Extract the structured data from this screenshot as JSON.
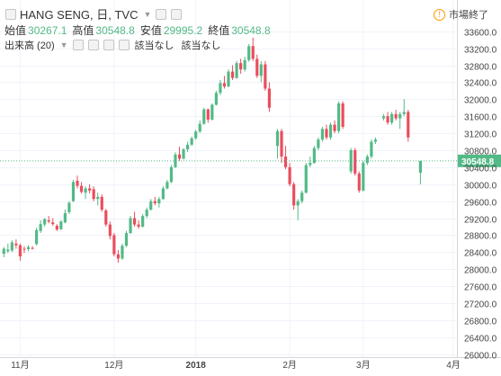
{
  "header": {
    "symbol": "HANG SENG, 日, TVC",
    "market_status": "市場終了",
    "ohlc": [
      {
        "label": "始值",
        "value": "30267.1"
      },
      {
        "label": "高值",
        "value": "30548.8"
      },
      {
        "label": "安值",
        "value": "29995.2"
      },
      {
        "label": "終值",
        "value": "30548.8"
      }
    ],
    "indicator": "出来高 (20)",
    "indicator_values": [
      "該当なし",
      "該当なし"
    ]
  },
  "colors": {
    "up": "#53b987",
    "down": "#eb4d5c",
    "last_price": "#53b987",
    "grid": "#f0f3fa",
    "axis_text": "#444444"
  },
  "chart_data": {
    "type": "candlestick",
    "y_ticks": [
      26000,
      26400,
      26800,
      27200,
      27600,
      28000,
      28400,
      28800,
      29200,
      29600,
      30000,
      30400,
      30800,
      31200,
      31600,
      32000,
      32400,
      32800,
      33200,
      33600
    ],
    "y_tick_labels": [
      "26000.0",
      "26400.0",
      "26800.0",
      "27200.0",
      "27600.0",
      "28000.0",
      "28400.0",
      "28800.0",
      "29200.0",
      "29600.0",
      "30000.0",
      "30400.0",
      "30800.0",
      "31200.0",
      "31600.0",
      "32000.0",
      "32400.0",
      "32800.0",
      "33200.0",
      "33600.0"
    ],
    "ylim": [
      25950,
      33700
    ],
    "x_labels": [
      {
        "index": 4,
        "label": "11月"
      },
      {
        "index": 27,
        "label": "12月"
      },
      {
        "index": 47,
        "label": "2018"
      },
      {
        "index": 70,
        "label": "2月"
      },
      {
        "index": 88,
        "label": "3月"
      },
      {
        "index": 111,
        "label": "4月"
      }
    ],
    "last_price": 30548.8,
    "last_price_label": "30548.8",
    "candles": [
      [
        28360,
        28520,
        28280,
        28480
      ],
      [
        28420,
        28600,
        28380,
        28460
      ],
      [
        28440,
        28680,
        28400,
        28630
      ],
      [
        28600,
        28700,
        28480,
        28560
      ],
      [
        28560,
        28600,
        28200,
        28300
      ],
      [
        28480,
        28540,
        28380,
        28470
      ],
      [
        28470,
        28560,
        28420,
        28520
      ],
      [
        28500,
        28540,
        28460,
        28490
      ],
      [
        28590,
        28970,
        28560,
        28920
      ],
      [
        28900,
        29150,
        28850,
        29060
      ],
      [
        29050,
        29200,
        29000,
        29180
      ],
      [
        29150,
        29250,
        29080,
        29120
      ],
      [
        29100,
        29200,
        29020,
        29060
      ],
      [
        29020,
        29060,
        28900,
        28930
      ],
      [
        28940,
        29150,
        28920,
        29120
      ],
      [
        29100,
        29400,
        29080,
        29320
      ],
      [
        29340,
        29600,
        29300,
        29560
      ],
      [
        29600,
        30100,
        29580,
        30050
      ],
      [
        30080,
        30200,
        29900,
        29960
      ],
      [
        29960,
        30050,
        29780,
        29820
      ],
      [
        29800,
        29950,
        29650,
        29900
      ],
      [
        29900,
        30000,
        29780,
        29850
      ],
      [
        29880,
        29950,
        29600,
        29650
      ],
      [
        29650,
        29800,
        29500,
        29700
      ],
      [
        29700,
        29760,
        29350,
        29400
      ],
      [
        29380,
        29420,
        29000,
        29050
      ],
      [
        29050,
        29120,
        28700,
        28780
      ],
      [
        28800,
        28850,
        28300,
        28350
      ],
      [
        28350,
        28450,
        28150,
        28250
      ],
      [
        28250,
        28600,
        28220,
        28550
      ],
      [
        28550,
        28900,
        28520,
        28850
      ],
      [
        28850,
        29250,
        28830,
        29200
      ],
      [
        29200,
        29350,
        29000,
        29050
      ],
      [
        29050,
        29150,
        28950,
        29000
      ],
      [
        29000,
        29300,
        28980,
        29250
      ],
      [
        29250,
        29450,
        29200,
        29400
      ],
      [
        29400,
        29650,
        29380,
        29600
      ],
      [
        29600,
        29700,
        29500,
        29550
      ],
      [
        29550,
        29700,
        29450,
        29650
      ],
      [
        29650,
        29950,
        29630,
        29900
      ],
      [
        29900,
        30100,
        29880,
        30050
      ],
      [
        30050,
        30450,
        30030,
        30400
      ],
      [
        30400,
        30750,
        30380,
        30700
      ],
      [
        30700,
        30880,
        30550,
        30600
      ],
      [
        30600,
        30850,
        30580,
        30820
      ],
      [
        30820,
        31000,
        30760,
        30930
      ],
      [
        30930,
        31120,
        30900,
        31080
      ],
      [
        31080,
        31280,
        31050,
        31240
      ],
      [
        31240,
        31500,
        31200,
        31420
      ],
      [
        31420,
        31800,
        31400,
        31760
      ],
      [
        31760,
        31780,
        31450,
        31520
      ],
      [
        31520,
        31900,
        31500,
        31870
      ],
      [
        31870,
        32200,
        31850,
        32150
      ],
      [
        32150,
        32450,
        32100,
        32380
      ],
      [
        32380,
        32550,
        32250,
        32300
      ],
      [
        32300,
        32700,
        32280,
        32650
      ],
      [
        32650,
        32800,
        32450,
        32500
      ],
      [
        32500,
        32900,
        32480,
        32850
      ],
      [
        32850,
        32950,
        32600,
        32700
      ],
      [
        32700,
        33000,
        32650,
        32920
      ],
      [
        32920,
        33300,
        32880,
        33250
      ],
      [
        33250,
        33450,
        32900,
        32950
      ],
      [
        32950,
        33050,
        32500,
        32550
      ],
      [
        32550,
        32900,
        32400,
        32820
      ],
      [
        32820,
        32900,
        32200,
        32250
      ],
      [
        32250,
        32400,
        31700,
        31800
      ],
      [
        30900,
        31300,
        30600,
        31250
      ],
      [
        31250,
        31300,
        30500,
        30650
      ],
      [
        30650,
        30900,
        30350,
        30400
      ],
      [
        30400,
        30500,
        29950,
        30000
      ],
      [
        30000,
        30050,
        29400,
        29500
      ],
      [
        29500,
        29650,
        29150,
        29600
      ],
      [
        29600,
        29850,
        29550,
        29800
      ],
      [
        29800,
        30500,
        29780,
        30450
      ],
      [
        30450,
        30650,
        30400,
        30500
      ],
      [
        30500,
        30900,
        30480,
        30850
      ],
      [
        30850,
        31100,
        30800,
        31050
      ],
      [
        31050,
        31350,
        31000,
        31300
      ],
      [
        31300,
        31400,
        31050,
        31100
      ],
      [
        31100,
        31450,
        31050,
        31400
      ],
      [
        31400,
        31500,
        31200,
        31250
      ],
      [
        31250,
        31950,
        31200,
        31900
      ],
      [
        31900,
        31950,
        31300,
        31350
      ],
      [
        30300,
        30850,
        30250,
        30800
      ],
      [
        30800,
        30850,
        30200,
        30250
      ],
      [
        30250,
        30300,
        29800,
        29850
      ],
      [
        29850,
        30550,
        29830,
        30500
      ],
      [
        30500,
        30700,
        30450,
        30650
      ],
      [
        30650,
        31050,
        30600,
        31000
      ],
      [
        31000,
        31100,
        30950,
        31050
      ],
      [
        31550,
        31650,
        31500,
        31600
      ],
      [
        31600,
        31700,
        31400,
        31450
      ],
      [
        31450,
        31700,
        31400,
        31650
      ],
      [
        31650,
        31750,
        31500,
        31550
      ],
      [
        31550,
        31700,
        31300,
        31650
      ],
      [
        31650,
        32000,
        31600,
        31700
      ],
      [
        31700,
        31750,
        31000,
        31100
      ],
      [
        30267.1,
        30548.8,
        29995.2,
        30548.8
      ]
    ],
    "x_slot": [
      0,
      1,
      2,
      3,
      4,
      5,
      6,
      7,
      8,
      9,
      10,
      11,
      12,
      13,
      14,
      15,
      16,
      17,
      18,
      19,
      20,
      21,
      22,
      23,
      24,
      25,
      26,
      27,
      28,
      29,
      30,
      31,
      32,
      33,
      34,
      35,
      36,
      37,
      38,
      39,
      40,
      41,
      42,
      43,
      44,
      45,
      46,
      47,
      48,
      49,
      50,
      51,
      52,
      53,
      54,
      55,
      56,
      57,
      58,
      59,
      60,
      61,
      62,
      63,
      64,
      65,
      67,
      68,
      69,
      70,
      71,
      72,
      73,
      74,
      75,
      76,
      77,
      78,
      79,
      80,
      81,
      82,
      83,
      85,
      86,
      87,
      88,
      89,
      90,
      91,
      93,
      94,
      95,
      96,
      97,
      98,
      99,
      102
    ]
  }
}
